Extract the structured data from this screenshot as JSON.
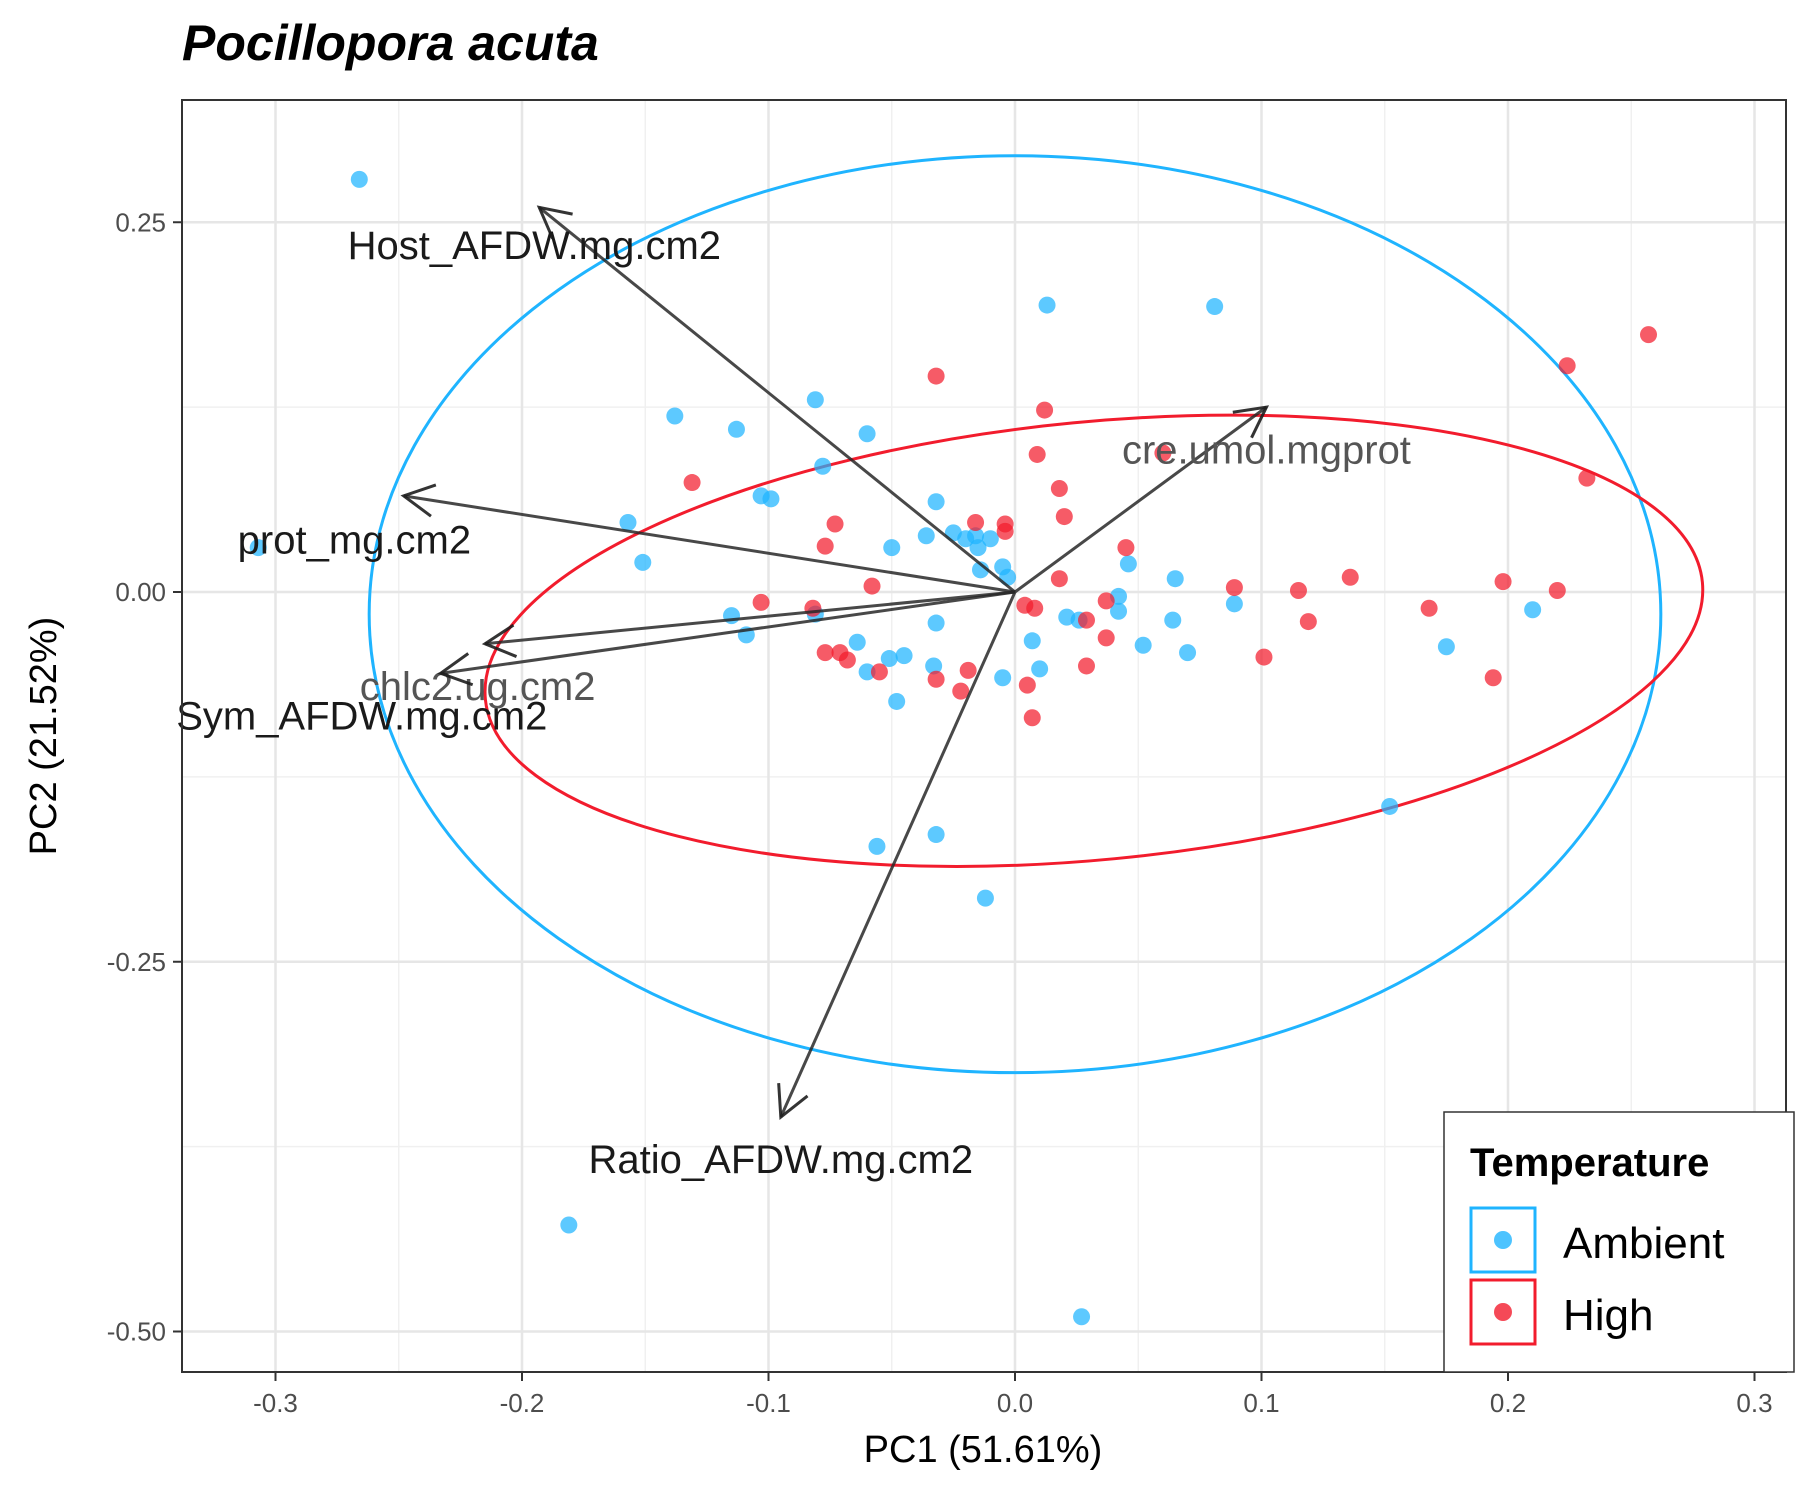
{
  "chart_data": {
    "type": "scatter",
    "title": "Pocillopora acuta",
    "xlabel": "PC1 (51.61%)",
    "ylabel": "PC2 (21.52%)",
    "xlim": [
      -0.34,
      0.31
    ],
    "ylim": [
      -0.525,
      0.33
    ],
    "x_ticks": [
      -0.3,
      -0.2,
      -0.1,
      0.0,
      0.1,
      0.2,
      0.3
    ],
    "x_tick_labels": [
      "-0.3",
      "-0.2",
      "-0.1",
      "0.0",
      "0.1",
      "0.2",
      "0.3"
    ],
    "y_ticks": [
      0.25,
      0.0,
      -0.25,
      -0.5
    ],
    "y_tick_labels": [
      "0.25",
      "0.00",
      "-0.25",
      "-0.50"
    ],
    "grid": true,
    "legend": {
      "title": "Temperature",
      "position": "bottom-right",
      "entries": [
        {
          "label": "Ambient",
          "color": "#1FB4FF"
        },
        {
          "label": "High",
          "color": "#F21C2D"
        }
      ]
    },
    "series": [
      {
        "name": "Ambient",
        "color": "#1FB4FF",
        "points": [
          [
            -0.266,
            0.279
          ],
          [
            -0.307,
            0.03
          ],
          [
            -0.181,
            -0.428
          ],
          [
            0.027,
            -0.49
          ],
          [
            0.013,
            0.194
          ],
          [
            0.081,
            0.193
          ],
          [
            -0.138,
            0.119
          ],
          [
            -0.113,
            0.11
          ],
          [
            -0.081,
            0.13
          ],
          [
            -0.06,
            0.107
          ],
          [
            -0.078,
            0.085
          ],
          [
            -0.103,
            0.065
          ],
          [
            -0.099,
            0.063
          ],
          [
            -0.157,
            0.047
          ],
          [
            -0.151,
            0.02
          ],
          [
            -0.032,
            0.061
          ],
          [
            -0.036,
            0.038
          ],
          [
            -0.025,
            0.04
          ],
          [
            -0.02,
            0.036
          ],
          [
            -0.016,
            0.038
          ],
          [
            -0.01,
            0.036
          ],
          [
            -0.05,
            0.03
          ],
          [
            -0.015,
            0.03
          ],
          [
            -0.005,
            0.017
          ],
          [
            -0.014,
            0.015
          ],
          [
            -0.003,
            0.01
          ],
          [
            -0.115,
            -0.016
          ],
          [
            -0.109,
            -0.029
          ],
          [
            -0.081,
            -0.015
          ],
          [
            -0.064,
            -0.034
          ],
          [
            -0.06,
            -0.054
          ],
          [
            -0.051,
            -0.045
          ],
          [
            -0.045,
            -0.043
          ],
          [
            -0.033,
            -0.05
          ],
          [
            -0.048,
            -0.074
          ],
          [
            -0.032,
            -0.021
          ],
          [
            -0.005,
            -0.058
          ],
          [
            0.007,
            -0.033
          ],
          [
            0.01,
            -0.052
          ],
          [
            0.021,
            -0.017
          ],
          [
            0.026,
            -0.019
          ],
          [
            0.042,
            -0.003
          ],
          [
            0.042,
            -0.013
          ],
          [
            0.046,
            0.019
          ],
          [
            0.052,
            -0.036
          ],
          [
            0.065,
            0.009
          ],
          [
            0.064,
            -0.019
          ],
          [
            0.07,
            -0.041
          ],
          [
            0.089,
            -0.008
          ],
          [
            0.152,
            -0.145
          ],
          [
            0.175,
            -0.037
          ],
          [
            0.21,
            -0.012
          ],
          [
            -0.032,
            -0.164
          ],
          [
            -0.056,
            -0.172
          ],
          [
            -0.012,
            -0.207
          ]
        ]
      },
      {
        "name": "High",
        "color": "#F21C2D",
        "points": [
          [
            0.257,
            0.174
          ],
          [
            0.224,
            0.153
          ],
          [
            0.232,
            0.077
          ],
          [
            -0.032,
            0.146
          ],
          [
            0.012,
            0.123
          ],
          [
            0.06,
            0.094
          ],
          [
            0.009,
            0.093
          ],
          [
            0.018,
            0.07
          ],
          [
            0.02,
            0.051
          ],
          [
            -0.131,
            0.074
          ],
          [
            -0.073,
            0.046
          ],
          [
            -0.077,
            0.031
          ],
          [
            -0.058,
            0.004
          ],
          [
            -0.016,
            0.047
          ],
          [
            -0.004,
            0.046
          ],
          [
            -0.004,
            0.041
          ],
          [
            0.045,
            0.03
          ],
          [
            0.018,
            0.009
          ],
          [
            0.136,
            0.01
          ],
          [
            0.115,
            0.001
          ],
          [
            0.089,
            0.003
          ],
          [
            0.198,
            0.007
          ],
          [
            0.22,
            0.001
          ],
          [
            0.168,
            -0.011
          ],
          [
            0.119,
            -0.02
          ],
          [
            0.037,
            -0.006
          ],
          [
            0.004,
            -0.009
          ],
          [
            0.008,
            -0.011
          ],
          [
            0.029,
            -0.019
          ],
          [
            0.037,
            -0.031
          ],
          [
            -0.103,
            -0.007
          ],
          [
            -0.082,
            -0.011
          ],
          [
            -0.077,
            -0.041
          ],
          [
            -0.071,
            -0.041
          ],
          [
            -0.068,
            -0.046
          ],
          [
            -0.055,
            -0.054
          ],
          [
            -0.032,
            -0.059
          ],
          [
            -0.019,
            -0.053
          ],
          [
            -0.022,
            -0.067
          ],
          [
            0.005,
            -0.063
          ],
          [
            0.029,
            -0.05
          ],
          [
            0.101,
            -0.044
          ],
          [
            0.194,
            -0.058
          ],
          [
            0.007,
            -0.085
          ]
        ]
      }
    ],
    "ellipses": [
      {
        "group": "Ambient",
        "color": "#1FB4FF",
        "center": [
          0.0,
          -0.015
        ],
        "radii": [
          0.262,
          0.31
        ],
        "angle_deg": 0
      },
      {
        "group": "High",
        "color": "#F21C2D",
        "center": [
          0.032,
          -0.033
        ],
        "radii": [
          0.248,
          0.148
        ],
        "angle_deg": 5.5
      }
    ],
    "loadings": [
      {
        "label": "Host_AFDW.mg.cm2",
        "x": -0.193,
        "y": 0.26,
        "label_x": -0.195,
        "label_y": 0.225,
        "label_color": "#1a1a1a"
      },
      {
        "label": "prot_mg.cm2",
        "x": -0.248,
        "y": 0.065,
        "label_x": -0.268,
        "label_y": 0.026,
        "label_color": "#1a1a1a"
      },
      {
        "label": "chlc2.ug.cm2",
        "x": -0.215,
        "y": -0.035,
        "label_x": -0.218,
        "label_y": -0.073,
        "label_color": "#555555"
      },
      {
        "label": "Sym_AFDW.mg.cm2",
        "x": -0.233,
        "y": -0.055,
        "label_x": -0.265,
        "label_y": -0.093,
        "label_color": "#1a1a1a"
      },
      {
        "label": "cre.umol.mgprot",
        "x": 0.102,
        "y": 0.125,
        "label_x": 0.102,
        "label_y": 0.087,
        "label_color": "#555555"
      },
      {
        "label": "Ratio_AFDW.mg.cm2",
        "x": -0.095,
        "y": -0.355,
        "label_x": -0.095,
        "label_y": -0.393,
        "label_color": "#1a1a1a"
      }
    ]
  }
}
